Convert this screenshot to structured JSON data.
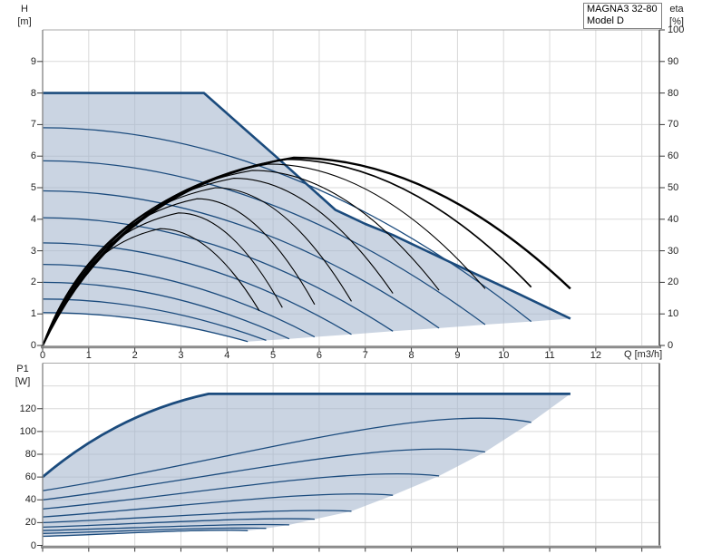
{
  "legend": {
    "line1": "MAGNA3 32-80",
    "line2": "Model D"
  },
  "colors": {
    "envelope_fill": "rgba(163,181,205,0.58)",
    "pump_curve_blue": "#1b4b7d",
    "eta_curve_black": "#000000",
    "grid": "#d9d9d9",
    "axis_thick": "#8c8c8c",
    "border_light": "#a8a8a8",
    "border_side": "#8a8a8a",
    "border_right": "#6e6e6e",
    "tick": "#3a3a3a",
    "tick_text": "#1f1f1f"
  },
  "chart_data": [
    {
      "type": "line",
      "id": "head-efficiency-chart",
      "title": "MAGNA3 32-80 Model D pump curves",
      "xlabel": "Q [m3/h]",
      "ylabel_left_line1": "H",
      "ylabel_left_line2": "[m]",
      "ylabel_right_line1": "eta",
      "ylabel_right_line2": "[%]",
      "xlim": [
        0,
        13.38
      ],
      "ylim_left": [
        0,
        10
      ],
      "ylim_right": [
        0,
        100
      ],
      "grid": "on",
      "x_tick_labels": [
        0,
        1,
        2,
        3,
        4,
        5,
        6,
        7,
        8,
        9,
        10,
        11,
        12
      ],
      "x_gridlines": [
        1,
        2,
        3,
        4,
        5,
        6,
        7,
        8,
        9,
        10,
        11,
        12,
        13
      ],
      "y_tick_labels_left": [
        0,
        1,
        2,
        3,
        4,
        5,
        6,
        7,
        8,
        9
      ],
      "y_gridlines_left": [
        1,
        2,
        3,
        4,
        5,
        6,
        7,
        8,
        9
      ],
      "y_tick_labels_right": [
        0,
        10,
        20,
        30,
        40,
        50,
        60,
        70,
        80,
        90,
        100
      ],
      "max_speed_curve": [
        [
          0,
          8
        ],
        [
          3.5,
          8
        ],
        [
          4.35,
          6.9
        ],
        [
          5.05,
          6.0
        ],
        [
          6.35,
          4.3
        ],
        [
          7.0,
          3.85
        ],
        [
          7.6,
          3.5
        ],
        [
          8.9,
          2.6
        ],
        [
          10.2,
          1.72
        ],
        [
          11.45,
          0.85
        ]
      ],
      "pump_curves": [
        {
          "h0": 6.9,
          "q_end": 10.6,
          "h_end": 0.76
        },
        {
          "h0": 5.85,
          "q_end": 9.6,
          "h_end": 0.66
        },
        {
          "h0": 4.9,
          "q_end": 8.6,
          "h_end": 0.55
        },
        {
          "h0": 4.05,
          "q_end": 7.6,
          "h_end": 0.45
        },
        {
          "h0": 3.25,
          "q_end": 6.7,
          "h_end": 0.35
        },
        {
          "h0": 2.57,
          "q_end": 5.9,
          "h_end": 0.27
        },
        {
          "h0": 2.0,
          "q_end": 5.35,
          "h_end": 0.21
        },
        {
          "h0": 1.47,
          "q_end": 4.85,
          "h_end": 0.16
        },
        {
          "h0": 1.04,
          "q_end": 4.45,
          "h_end": 0.12
        }
      ],
      "eta_curves": [
        {
          "peak_q": 5.45,
          "peak_eta": 59.5,
          "end_q": 11.45,
          "end_eta": 18.0,
          "width": 2.4
        },
        {
          "peak_q": 5.25,
          "peak_eta": 59.0,
          "end_q": 10.6,
          "end_eta": 18.5,
          "width": 1.7
        },
        {
          "peak_q": 4.9,
          "peak_eta": 57.5,
          "end_q": 9.6,
          "end_eta": 18.0,
          "width": 1.1
        },
        {
          "peak_q": 4.55,
          "peak_eta": 55.5,
          "end_q": 8.6,
          "end_eta": 17.5,
          "width": 1.1
        },
        {
          "peak_q": 4.15,
          "peak_eta": 53.0,
          "end_q": 7.6,
          "end_eta": 16.5,
          "width": 1.1
        },
        {
          "peak_q": 3.75,
          "peak_eta": 50.0,
          "end_q": 6.7,
          "end_eta": 14.0,
          "width": 1.1
        },
        {
          "peak_q": 3.35,
          "peak_eta": 46.5,
          "end_q": 5.9,
          "end_eta": 13.0,
          "width": 1.1
        },
        {
          "peak_q": 2.95,
          "peak_eta": 42.0,
          "end_q": 5.2,
          "end_eta": 12.0,
          "width": 1.1
        },
        {
          "peak_q": 2.55,
          "peak_eta": 37.0,
          "end_q": 4.7,
          "end_eta": 11.0,
          "width": 1.1
        }
      ]
    },
    {
      "type": "line",
      "id": "power-chart",
      "title": "Input power P1",
      "ylabel_left_line1": "P1",
      "ylabel_left_line2": "[W]",
      "xlim": [
        0,
        13.38
      ],
      "ylim": [
        0,
        160
      ],
      "grid": "on",
      "x_gridlines": [
        1,
        2,
        3,
        4,
        5,
        6,
        7,
        8,
        9,
        10,
        11,
        12,
        13
      ],
      "x_ticks": [
        0,
        1,
        2,
        3,
        4,
        5,
        6,
        7,
        8,
        9,
        10,
        11,
        12,
        13
      ],
      "y_tick_labels": [
        0,
        20,
        40,
        60,
        80,
        100,
        120
      ],
      "y_gridlines": [
        20,
        40,
        60,
        80,
        100,
        120,
        140
      ],
      "max_power_curve": {
        "p0": 60,
        "p_flat": 133,
        "q_flat_start": 3.6,
        "q_end": 11.45
      },
      "power_curves": [
        {
          "p0": 48,
          "q_end": 10.6,
          "p_end": 108
        },
        {
          "p0": 40,
          "q_end": 9.6,
          "p_end": 82
        },
        {
          "p0": 32,
          "q_end": 8.6,
          "p_end": 61
        },
        {
          "p0": 25,
          "q_end": 7.6,
          "p_end": 44
        },
        {
          "p0": 20,
          "q_end": 6.7,
          "p_end": 30
        },
        {
          "p0": 16,
          "q_end": 5.9,
          "p_end": 23
        },
        {
          "p0": 13,
          "q_end": 5.35,
          "p_end": 18
        },
        {
          "p0": 10.5,
          "q_end": 4.85,
          "p_end": 15
        },
        {
          "p0": 8,
          "q_end": 4.45,
          "p_end": 13
        }
      ]
    }
  ]
}
